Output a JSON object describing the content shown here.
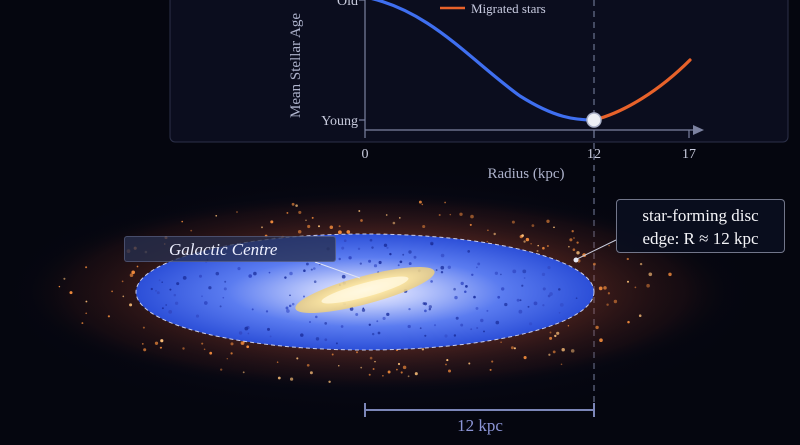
{
  "chart": {
    "ylabel": "Mean Stellar Age",
    "ytick_top": "Old",
    "ytick_bottom": "Young",
    "xlabel": "Radius (kpc)",
    "xticks": [
      "0",
      "12",
      "17"
    ],
    "legend_migrated": "Migrated stars",
    "colors": {
      "inside_disc": "#3f6ff0",
      "migrated": "#e8622a",
      "guide": "#6b7390"
    }
  },
  "chart_data": {
    "type": "line",
    "xlabel": "Radius (kpc)",
    "ylabel": "Mean Stellar Age",
    "xlim": [
      0,
      17
    ],
    "ylim": [
      "Young",
      "Old"
    ],
    "series": [
      {
        "values_description_x": [
          0,
          3,
          6,
          9,
          12
        ],
        "values": [
          1.0,
          0.82,
          0.42,
          0.12,
          0.0
        ]
      },
      {
        "name": "Migrated stars",
        "x": [
          12,
          14,
          16,
          17
        ],
        "values": [
          0.0,
          0.2,
          0.45,
          0.6
        ]
      }
    ],
    "marker": {
      "x": 12,
      "y": 0.0
    }
  },
  "galaxy": {
    "centre_label": "Galactic Centre",
    "edge_label_line1": "star-forming disc",
    "edge_label_line2": "edge: R ≈ 12 kpc",
    "scale_label": "12 kpc",
    "colors": {
      "disc": "#3a5fe8",
      "bulge": "#f4dc94",
      "halo": "#e3662a"
    }
  }
}
